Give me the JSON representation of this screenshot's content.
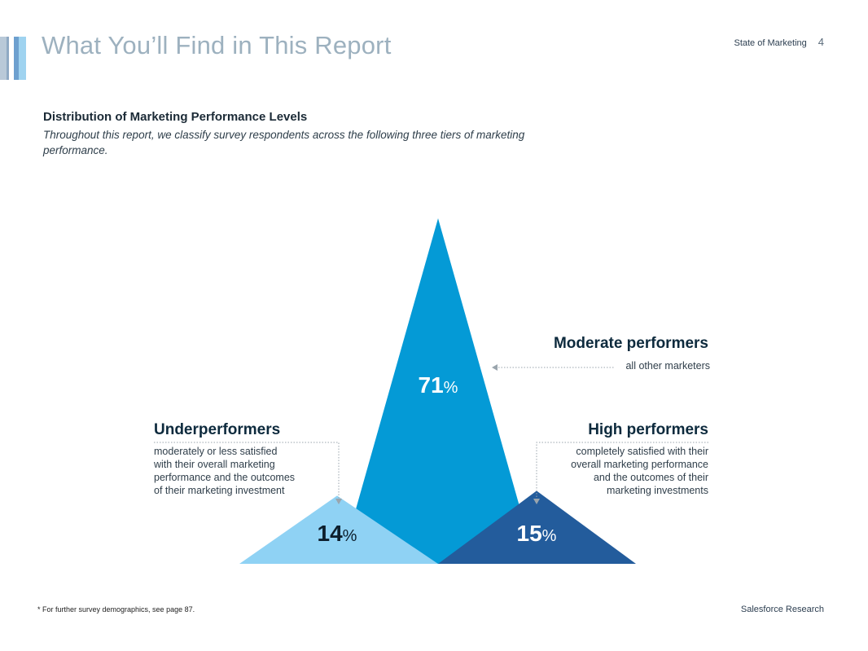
{
  "header": {
    "title": "What You’ll Find in This Report",
    "report_name": "State of Marketing",
    "page_number": "4"
  },
  "colors": {
    "accent_bars": [
      "#b9c9d8",
      "#8fa9c4",
      "#6da0cf",
      "#9fd3f0"
    ],
    "underperformers": "#8fd2f4",
    "moderate": "#049ad6",
    "high": "#235c9c",
    "connector": "#9aa5ad"
  },
  "chart_data": {
    "type": "area",
    "title": "Distribution of Marketing Performance Levels",
    "subtitle": "Throughout this report, we classify survey respondents across the following three tiers of marketing performance.",
    "unit": "%",
    "series": [
      {
        "name": "Underperformers",
        "value": 14,
        "description": "moderately or less satisfied with their overall marketing performance and the outcomes of their marketing investment"
      },
      {
        "name": "Moderate performers",
        "value": 71,
        "description": "all other marketers"
      },
      {
        "name": "High performers",
        "value": 15,
        "description": "completely satisfied with their overall marketing performance and the outcomes of their marketing investments"
      }
    ]
  },
  "desc_lines": {
    "underperformers": [
      "moderately or less satisfied",
      "with their overall marketing",
      "performance and the outcomes",
      "of their marketing investment"
    ],
    "high": [
      "completely satisfied with their",
      "overall marketing performance",
      "and the outcomes of their",
      "marketing investments"
    ]
  },
  "footer": {
    "footnote": "* For further survey demographics, see page 87.",
    "source": "Salesforce Research"
  }
}
